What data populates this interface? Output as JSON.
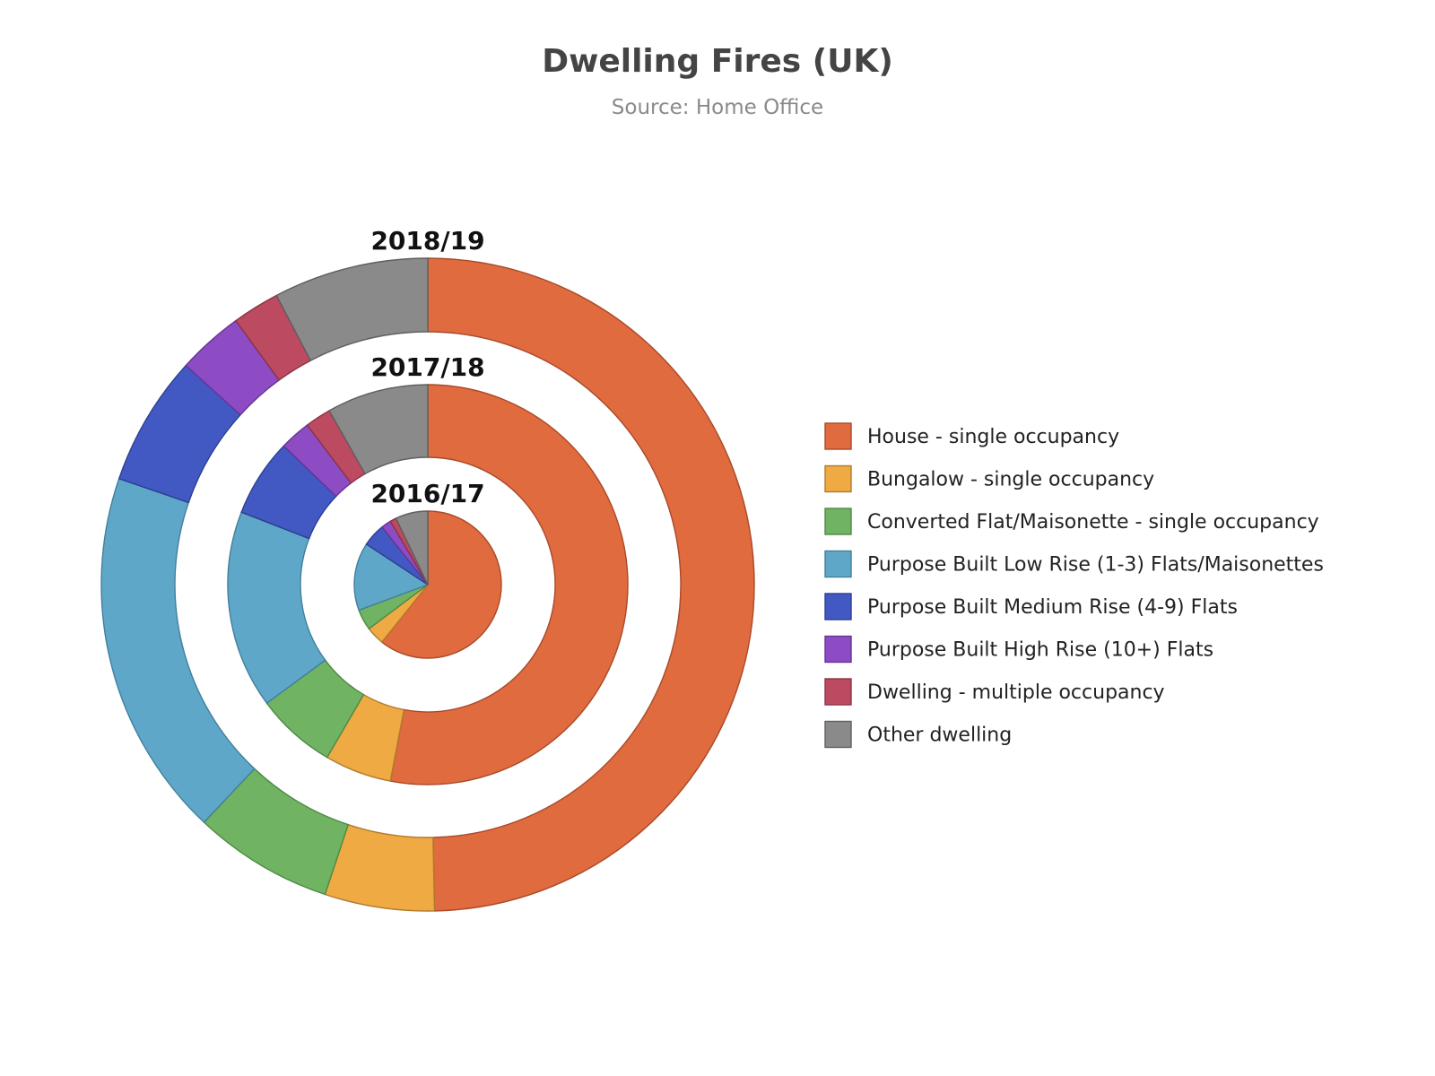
{
  "chart_data": {
    "type": "pie",
    "title": "Dwelling Fires (UK)",
    "subtitle": "Source: Home Office",
    "categories": [
      "House - single occupancy",
      "Bungalow - single occupancy",
      "Converted Flat/Maisonette - single occupancy",
      "Purpose Built Low Rise (1-3) Flats/Maisonettes",
      "Purpose Built Medium Rise (4-9) Flats",
      "Purpose Built High Rise (10+) Flats",
      "Dwelling - multiple occupancy",
      "Other dwelling"
    ],
    "colors": [
      "#e06b3e",
      "#efaa43",
      "#6fb363",
      "#5fa7c9",
      "#4259c4",
      "#8e4cc4",
      "#bc4a60",
      "#8a8a8a"
    ],
    "stroke_colors": [
      "#a8492a",
      "#b07b2c",
      "#4f8a45",
      "#417f9b",
      "#2c3f8f",
      "#663494",
      "#8a3445",
      "#5f5f5f"
    ],
    "series": [
      {
        "name": "2016/17",
        "values": [
          52.9,
          3.5,
          4.0,
          13.0,
          4.4,
          1.9,
          1.2,
          6.2
        ]
      },
      {
        "name": "2017/18",
        "values": [
          53.0,
          5.4,
          6.5,
          16.0,
          6.3,
          2.5,
          2.1,
          8.2
        ]
      },
      {
        "name": "2018/19",
        "values": [
          53.1,
          5.8,
          7.4,
          19.5,
          6.9,
          3.5,
          2.5,
          8.2
        ]
      }
    ],
    "units": "percent",
    "legend": "right"
  }
}
